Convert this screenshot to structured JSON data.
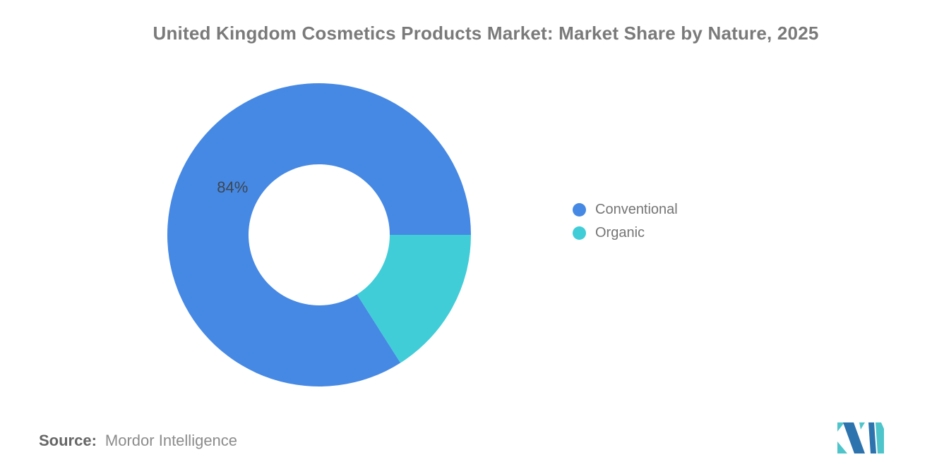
{
  "header": {
    "title": "United Kingdom Cosmetics Products Market: Market Share by Nature, 2025"
  },
  "chart_data": {
    "type": "pie",
    "subtype": "donut",
    "title": "United Kingdom Cosmetics Products Market: Market Share by Nature, 2025",
    "unit": "percent",
    "slices": [
      {
        "label": "Conventional",
        "value": 84,
        "color": "#4689E4",
        "data_label": "84%"
      },
      {
        "label": "Organic",
        "value": 16,
        "color": "#40CDD8",
        "data_label": ""
      }
    ],
    "start_angle_deg": -57.6,
    "inner_radius_ratio": 0.465,
    "legend_position": "right",
    "data_label_color": "#3d4650",
    "background": "#ffffff"
  },
  "footer": {
    "source_label": "Source:",
    "source_value": "Mordor Intelligence",
    "logo": {
      "name": "mordor-intelligence-logo",
      "dark_blue": "#2D73AE",
      "teal": "#4EC5CB"
    }
  }
}
